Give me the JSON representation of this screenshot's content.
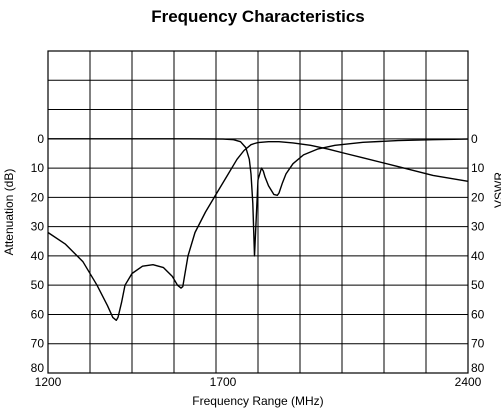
{
  "chart_data": {
    "type": "line",
    "title": "Frequency Characteristics",
    "xlabel": "Frequency Range (MHz)",
    "ylabel_left": "Attenuation (dB)",
    "ylabel_right": "VSWR",
    "xlim": [
      1200,
      2400
    ],
    "ylim": [
      80,
      -30
    ],
    "y_inverted": true,
    "grid": true,
    "x_tick_labels": [
      {
        "value": 1200,
        "label": "1200"
      },
      {
        "value": 1700,
        "label": "1700"
      },
      {
        "value": 2400,
        "label": "2400"
      }
    ],
    "y_tick_labels": [
      "0",
      "10",
      "20",
      "30",
      "40",
      "50",
      "60",
      "70",
      "80"
    ],
    "y_tick_values": [
      0,
      10,
      20,
      30,
      40,
      50,
      60,
      70,
      80
    ],
    "series": [
      {
        "color": "#000000",
        "x": [
          1200,
          1250,
          1300,
          1340,
          1370,
          1385,
          1395,
          1400,
          1410,
          1420,
          1440,
          1470,
          1500,
          1530,
          1555,
          1570,
          1580,
          1585,
          1590,
          1600,
          1620,
          1650,
          1680,
          1710,
          1740,
          1760,
          1780,
          1790,
          1800,
          1830,
          1860,
          1900,
          1950,
          2000,
          2050,
          2100,
          2200,
          2300,
          2400
        ],
        "y": [
          32,
          36,
          42,
          50,
          57,
          61,
          62,
          61,
          56,
          50,
          46,
          43.5,
          43,
          44,
          47,
          50,
          51,
          50.5,
          47,
          40,
          32,
          25,
          19,
          13,
          7,
          4,
          2,
          1.6,
          1.3,
          1,
          1,
          1.4,
          2.2,
          3.5,
          5,
          6.5,
          9.5,
          12.5,
          14.5
        ]
      },
      {
        "color": "#000000",
        "x": [
          1200,
          1400,
          1600,
          1700,
          1730,
          1750,
          1765,
          1775,
          1780,
          1785,
          1790,
          1800,
          1810,
          1815,
          1820,
          1830,
          1845,
          1855,
          1860,
          1870,
          1880,
          1900,
          1930,
          1970,
          2020,
          2100,
          2200,
          2300,
          2400
        ],
        "y": [
          0,
          0,
          0,
          0.1,
          0.3,
          1,
          3,
          7,
          12,
          22,
          40,
          14,
          10,
          11,
          13,
          16,
          19,
          19.3,
          18.5,
          15,
          12,
          8.5,
          5.5,
          3.5,
          2.2,
          1.2,
          0.6,
          0.3,
          0.1
        ]
      }
    ]
  }
}
